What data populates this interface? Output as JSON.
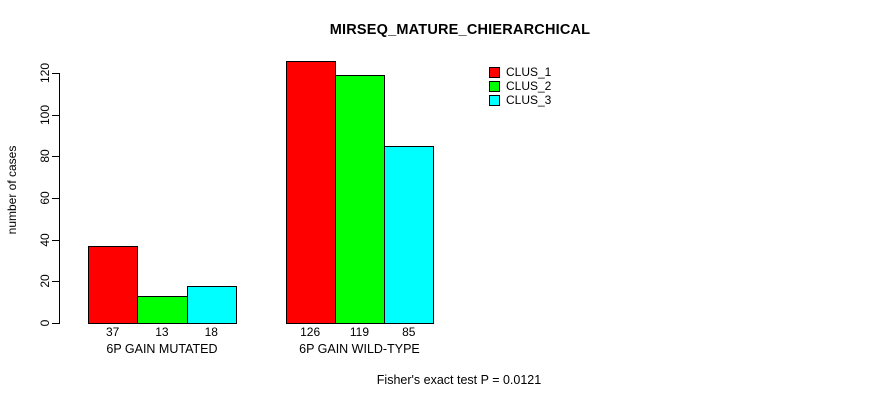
{
  "title": "MIRSEQ_MATURE_CHIERARCHICAL",
  "footer": "Fisher's exact test P = 0.0121",
  "chart_data": {
    "type": "bar",
    "title": "MIRSEQ_MATURE_CHIERARCHICAL",
    "xlabel": "",
    "ylabel": "number of cases",
    "categories": [
      "6P GAIN MUTATED",
      "6P GAIN WILD-TYPE"
    ],
    "series": [
      {
        "name": "CLUS_1",
        "color": "#ff0000",
        "values": [
          37,
          126
        ]
      },
      {
        "name": "CLUS_2",
        "color": "#00ff00",
        "values": [
          13,
          119
        ]
      },
      {
        "name": "CLUS_3",
        "color": "#00ffff",
        "values": [
          18,
          85
        ]
      }
    ],
    "bar_value_labels_shown": true,
    "yticks": [
      0,
      20,
      40,
      60,
      80,
      100,
      120
    ],
    "ylim": [
      0,
      126
    ],
    "grid": false,
    "legend_position": "top-right",
    "annotation": "Fisher's exact test P = 0.0121"
  }
}
